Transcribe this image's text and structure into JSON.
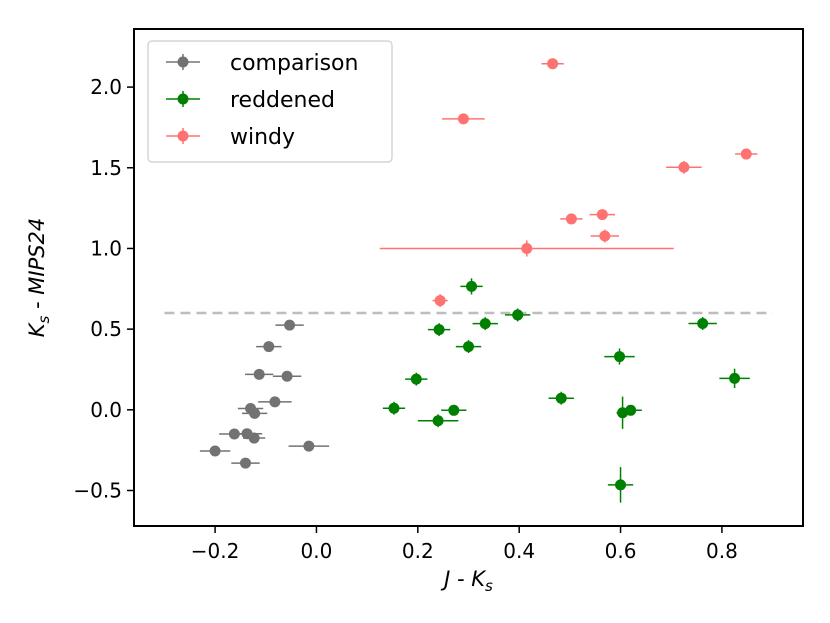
{
  "chart_data": {
    "type": "scatter",
    "title": "",
    "xlabel": "J - K_s",
    "ylabel": "K_s - MIPS24",
    "xlim": [
      -0.36,
      0.96
    ],
    "ylim": [
      -0.72,
      2.36
    ],
    "xticks": [
      -0.2,
      0.0,
      0.2,
      0.4,
      0.6,
      0.8
    ],
    "xtick_labels": [
      "−0.2",
      "0.0",
      "0.2",
      "0.4",
      "0.6",
      "0.8"
    ],
    "yticks": [
      -0.5,
      0.0,
      0.5,
      1.0,
      1.5,
      2.0
    ],
    "ytick_labels": [
      "−0.5",
      "0.0",
      "0.5",
      "1.0",
      "1.5",
      "2.0"
    ],
    "grid": false,
    "legend_position": "top-left",
    "reference_line": {
      "y": 0.6,
      "x_range": [
        -0.3,
        0.9
      ],
      "style": "dashed",
      "color": "#bdbdbd"
    },
    "series": [
      {
        "name": "comparison",
        "color": "#000000",
        "alpha": 0.55,
        "points": [
          {
            "x": -0.053,
            "y": 0.525,
            "xerr": 0.028,
            "yerr": 0.03
          },
          {
            "x": -0.094,
            "y": 0.392,
            "xerr": 0.025,
            "yerr": 0.03
          },
          {
            "x": -0.113,
            "y": 0.22,
            "xerr": 0.028,
            "yerr": 0.03
          },
          {
            "x": -0.058,
            "y": 0.208,
            "xerr": 0.028,
            "yerr": 0.03
          },
          {
            "x": -0.082,
            "y": 0.049,
            "xerr": 0.033,
            "yerr": 0.03
          },
          {
            "x": -0.13,
            "y": 0.008,
            "xerr": 0.025,
            "yerr": 0.03
          },
          {
            "x": -0.122,
            "y": -0.022,
            "xerr": 0.025,
            "yerr": 0.03
          },
          {
            "x": -0.162,
            "y": -0.15,
            "xerr": 0.03,
            "yerr": 0.03
          },
          {
            "x": -0.137,
            "y": -0.148,
            "xerr": 0.03,
            "yerr": 0.03
          },
          {
            "x": -0.123,
            "y": -0.175,
            "xerr": 0.022,
            "yerr": 0.03
          },
          {
            "x": -0.015,
            "y": -0.225,
            "xerr": 0.04,
            "yerr": 0.03
          },
          {
            "x": -0.2,
            "y": -0.255,
            "xerr": 0.03,
            "yerr": 0.03
          },
          {
            "x": -0.14,
            "y": -0.33,
            "xerr": 0.028,
            "yerr": 0.03
          }
        ]
      },
      {
        "name": "reddened",
        "color": "#008000",
        "alpha": 1.0,
        "points": [
          {
            "x": 0.306,
            "y": 0.765,
            "xerr": 0.022,
            "yerr": 0.05
          },
          {
            "x": 0.397,
            "y": 0.588,
            "xerr": 0.025,
            "yerr": 0.04
          },
          {
            "x": 0.333,
            "y": 0.534,
            "xerr": 0.025,
            "yerr": 0.04
          },
          {
            "x": 0.242,
            "y": 0.497,
            "xerr": 0.022,
            "yerr": 0.04
          },
          {
            "x": 0.3,
            "y": 0.392,
            "xerr": 0.025,
            "yerr": 0.04
          },
          {
            "x": 0.197,
            "y": 0.19,
            "xerr": 0.022,
            "yerr": 0.04
          },
          {
            "x": 0.153,
            "y": 0.01,
            "xerr": 0.022,
            "yerr": 0.04
          },
          {
            "x": 0.271,
            "y": -0.003,
            "xerr": 0.025,
            "yerr": 0.03
          },
          {
            "x": 0.24,
            "y": -0.068,
            "xerr": 0.04,
            "yerr": 0.04
          },
          {
            "x": 0.483,
            "y": 0.072,
            "xerr": 0.025,
            "yerr": 0.04
          },
          {
            "x": 0.598,
            "y": 0.33,
            "xerr": 0.03,
            "yerr": 0.05
          },
          {
            "x": 0.604,
            "y": -0.018,
            "xerr": 0.012,
            "yerr": 0.1
          },
          {
            "x": 0.62,
            "y": -0.003,
            "xerr": 0.022,
            "yerr": 0.03
          },
          {
            "x": 0.6,
            "y": -0.465,
            "xerr": 0.025,
            "yerr": 0.11
          },
          {
            "x": 0.762,
            "y": 0.535,
            "xerr": 0.028,
            "yerr": 0.04
          },
          {
            "x": 0.825,
            "y": 0.195,
            "xerr": 0.03,
            "yerr": 0.06
          }
        ]
      },
      {
        "name": "windy",
        "color": "#ff0000",
        "alpha": 0.55,
        "points": [
          {
            "x": 0.466,
            "y": 2.145,
            "xerr": 0.022,
            "yerr": 0.03
          },
          {
            "x": 0.29,
            "y": 1.803,
            "xerr": 0.042,
            "yerr": 0.03
          },
          {
            "x": 0.848,
            "y": 1.585,
            "xerr": 0.022,
            "yerr": 0.03
          },
          {
            "x": 0.725,
            "y": 1.503,
            "xerr": 0.035,
            "yerr": 0.04
          },
          {
            "x": 0.503,
            "y": 1.183,
            "xerr": 0.022,
            "yerr": 0.03
          },
          {
            "x": 0.564,
            "y": 1.21,
            "xerr": 0.025,
            "yerr": 0.03
          },
          {
            "x": 0.569,
            "y": 1.077,
            "xerr": 0.028,
            "yerr": 0.04
          },
          {
            "x": 0.415,
            "y": 1.0,
            "xerr": 0.29,
            "yerr": 0.05
          },
          {
            "x": 0.244,
            "y": 0.677,
            "xerr": 0.015,
            "yerr": 0.04
          }
        ]
      }
    ]
  }
}
